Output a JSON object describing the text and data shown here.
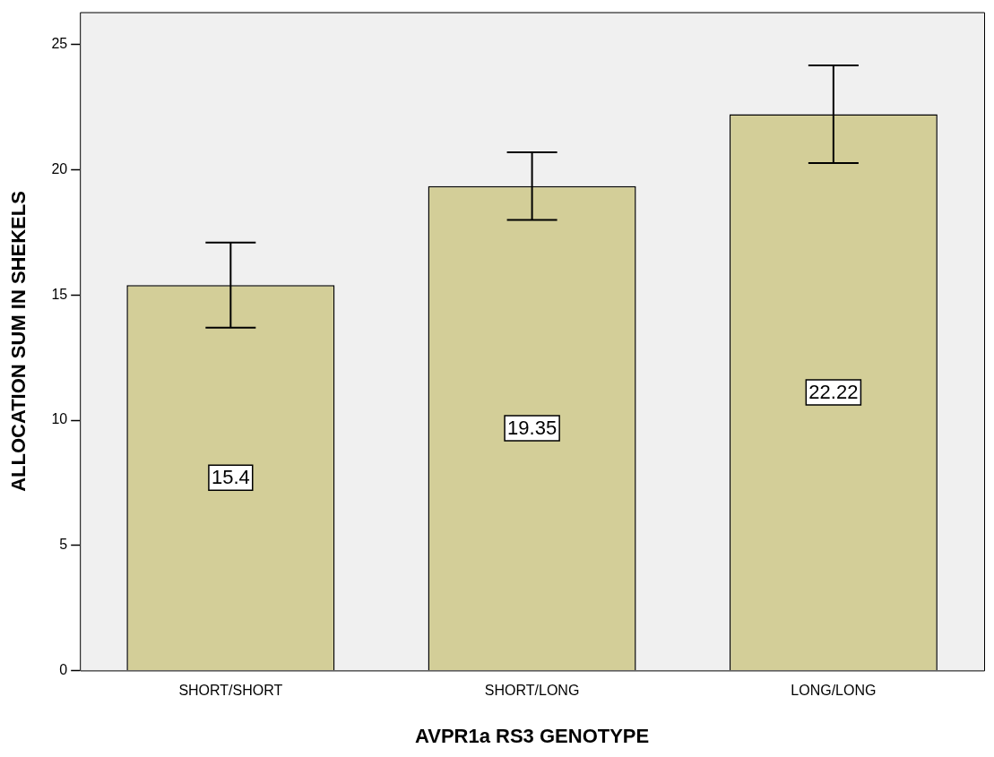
{
  "chart_data": {
    "type": "bar",
    "xlabel": "AVPR1a RS3 GENOTYPE",
    "ylabel": "ALLOCATION SUM IN SHEKELS",
    "categories": [
      "SHORT/SHORT",
      "SHORT/LONG",
      "LONG/LONG"
    ],
    "values": [
      15.4,
      19.35,
      22.22
    ],
    "errors": [
      1.7,
      1.35,
      1.95
    ],
    "color": "#d3ce98",
    "ylim": [
      0,
      26.3
    ],
    "yticks": [
      0,
      5,
      10,
      15,
      20,
      25
    ],
    "grid": false,
    "legend": false,
    "data_labels": true
  }
}
